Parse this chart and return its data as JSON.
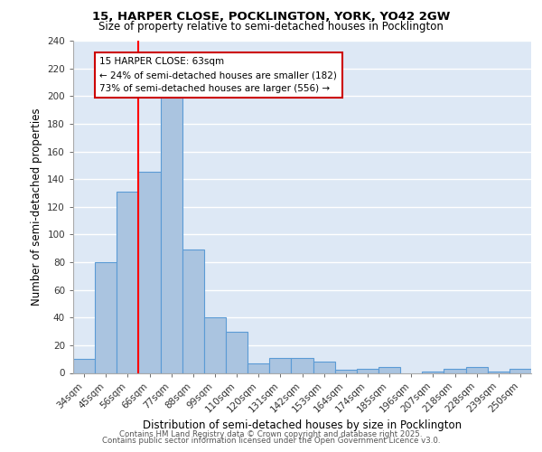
{
  "title1": "15, HARPER CLOSE, POCKLINGTON, YORK, YO42 2GW",
  "title2": "Size of property relative to semi-detached houses in Pocklington",
  "xlabel": "Distribution of semi-detached houses by size in Pocklington",
  "ylabel": "Number of semi-detached properties",
  "categories": [
    "34sqm",
    "45sqm",
    "56sqm",
    "66sqm",
    "77sqm",
    "88sqm",
    "99sqm",
    "110sqm",
    "120sqm",
    "131sqm",
    "142sqm",
    "153sqm",
    "164sqm",
    "174sqm",
    "185sqm",
    "196sqm",
    "207sqm",
    "218sqm",
    "228sqm",
    "239sqm",
    "250sqm"
  ],
  "values": [
    10,
    80,
    131,
    145,
    200,
    89,
    40,
    30,
    7,
    11,
    11,
    8,
    2,
    3,
    4,
    0,
    1,
    3,
    4,
    1,
    3
  ],
  "bar_color": "#aac4e0",
  "bar_edge_color": "#5b9bd5",
  "bg_color": "#dde8f5",
  "grid_color": "#ffffff",
  "red_line_x": 2.5,
  "annotation_title": "15 HARPER CLOSE: 63sqm",
  "annotation_line1": "← 24% of semi-detached houses are smaller (182)",
  "annotation_line2": "73% of semi-detached houses are larger (556) →",
  "annotation_box_color": "#cc0000",
  "ylim": [
    0,
    240
  ],
  "yticks": [
    0,
    20,
    40,
    60,
    80,
    100,
    120,
    140,
    160,
    180,
    200,
    220,
    240
  ],
  "footer1": "Contains HM Land Registry data © Crown copyright and database right 2025.",
  "footer2": "Contains public sector information licensed under the Open Government Licence v3.0."
}
